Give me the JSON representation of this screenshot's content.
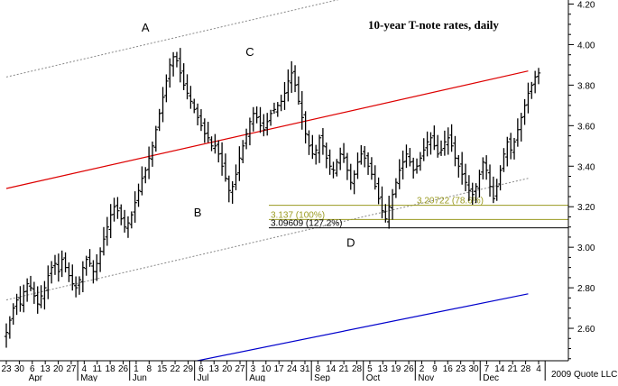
{
  "chart_data": {
    "type": "bar",
    "subtype": "ohlc-price-bars",
    "title": "10-year T-note rates, daily",
    "copyright": "2009 Quote LLC",
    "y_axis": {
      "position": "right",
      "range": [
        2.44,
        4.22
      ],
      "ticks": [
        "2.60",
        "2.80",
        "3.00",
        "3.20",
        "3.40",
        "3.60",
        "3.80",
        "4.00",
        "4.20"
      ],
      "grid": false
    },
    "x_axis": {
      "day_ticks": [
        "23",
        "30",
        "6",
        "13",
        "20",
        "27",
        "4",
        "11",
        "18",
        "26",
        "1",
        "8",
        "15",
        "22",
        "29",
        "6",
        "13",
        "20",
        "27",
        "3",
        "10",
        "17",
        "24",
        "31",
        "8",
        "14",
        "21",
        "28",
        "5",
        "13",
        "19",
        "26",
        "2",
        "9",
        "16",
        "23",
        "30",
        "7",
        "14",
        "21",
        "28",
        "4"
      ],
      "month_labels": [
        "Apr",
        "May",
        "Jun",
        "Jul",
        "Aug",
        "Sep",
        "Oct",
        "Nov",
        "Dec"
      ]
    },
    "colors": {
      "price_bars": "#000000",
      "red_trendline": "#dd0000",
      "blue_trendline": "#0000cc",
      "channel_lines": "#888888",
      "fib_lines": "#9a9a20"
    },
    "series": [
      {
        "values": [
          2.58,
          2.64,
          2.7,
          2.74,
          2.72,
          2.78,
          2.82,
          2.8,
          2.76,
          2.72,
          2.76,
          2.8,
          2.86,
          2.9,
          2.92,
          2.88,
          2.94,
          2.9,
          2.86,
          2.82,
          2.8,
          2.84,
          2.9,
          2.94,
          2.92,
          2.88,
          2.92,
          2.98,
          3.04,
          3.1,
          3.16,
          3.2,
          3.18,
          3.14,
          3.1,
          3.12,
          3.16,
          3.22,
          3.28,
          3.34,
          3.38,
          3.44,
          3.5,
          3.58,
          3.66,
          3.74,
          3.82,
          3.9,
          3.94,
          3.92,
          3.86,
          3.8,
          3.76,
          3.72,
          3.68,
          3.64,
          3.6,
          3.56,
          3.54,
          3.5,
          3.5,
          3.46,
          3.4,
          3.34,
          3.28,
          3.3,
          3.36,
          3.44,
          3.5,
          3.56,
          3.62,
          3.66,
          3.64,
          3.6,
          3.58,
          3.62,
          3.66,
          3.68,
          3.7,
          3.72,
          3.76,
          3.82,
          3.86,
          3.8,
          3.72,
          3.64,
          3.56,
          3.5,
          3.46,
          3.48,
          3.54,
          3.5,
          3.44,
          3.4,
          3.38,
          3.42,
          3.46,
          3.44,
          3.38,
          3.32,
          3.36,
          3.42,
          3.46,
          3.44,
          3.4,
          3.36,
          3.3,
          3.24,
          3.18,
          3.14,
          3.2,
          3.26,
          3.32,
          3.38,
          3.42,
          3.46,
          3.42,
          3.38,
          3.4,
          3.44,
          3.48,
          3.52,
          3.54,
          3.5,
          3.46,
          3.48,
          3.52,
          3.54,
          3.5,
          3.44,
          3.4,
          3.36,
          3.32,
          3.28,
          3.26,
          3.3,
          3.36,
          3.42,
          3.38,
          3.3,
          3.24,
          3.3,
          3.38,
          3.46,
          3.52,
          3.48,
          3.52,
          3.58,
          3.64,
          3.7,
          3.76,
          3.8,
          3.84,
          3.86
        ]
      }
    ],
    "trendlines": [
      {
        "name": "red_trendline",
        "from": {
          "x": 0,
          "y": 3.29
        },
        "to": {
          "x": 150,
          "y": 3.87
        }
      },
      {
        "name": "blue_trendline",
        "from": {
          "x": 52,
          "y": 2.43
        },
        "to": {
          "x": 150,
          "y": 2.77
        }
      },
      {
        "name": "upper_channel",
        "from": {
          "x": 0,
          "y": 3.84
        },
        "to": {
          "x": 150,
          "y": 4.44
        }
      },
      {
        "name": "lower_channel",
        "from": {
          "x": 0,
          "y": 2.74
        },
        "to": {
          "x": 150,
          "y": 3.34
        }
      }
    ],
    "fib_levels": [
      {
        "value": 3.20722,
        "label": "3.20722 (78.6%)",
        "color": "#9a9a20"
      },
      {
        "value": 3.137,
        "label": "3.137 (100%)",
        "color": "#9a9a20"
      },
      {
        "value": 3.09609,
        "label": "3.09609 (127.2%)",
        "color": "#000000"
      }
    ],
    "wave_labels": [
      {
        "text": "A",
        "x": 40,
        "y": 4.02,
        "placement": "above"
      },
      {
        "text": "B",
        "x": 55,
        "y": 3.25,
        "placement": "below"
      },
      {
        "text": "C",
        "x": 70,
        "y": 3.9,
        "placement": "above"
      },
      {
        "text": "D",
        "x": 99,
        "y": 3.1,
        "placement": "below"
      }
    ]
  }
}
